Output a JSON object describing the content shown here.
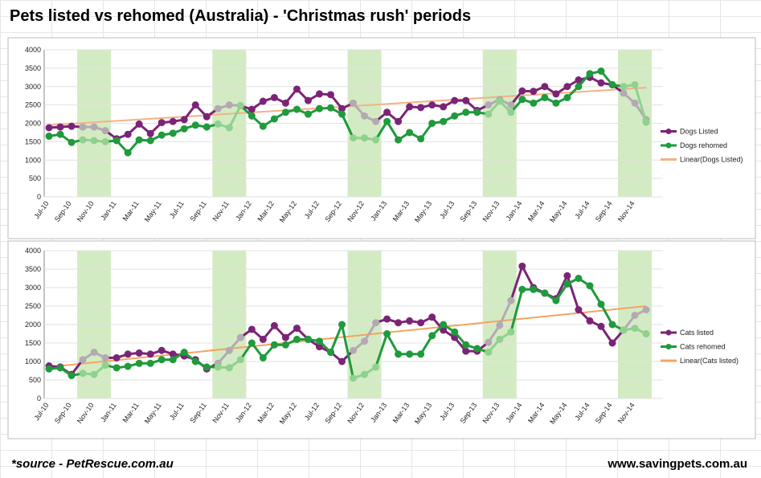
{
  "header": {
    "title": "Pets listed vs rehomed (Australia) - 'Christmas rush' periods"
  },
  "footer": {
    "source": "*source - PetRescue.com.au",
    "site": "www.savingpets.com.au"
  },
  "chart_data": [
    {
      "type": "line",
      "categories": [
        "Jul-10",
        null,
        "Sep-10",
        null,
        "Nov-10",
        null,
        "Jan-11",
        null,
        "Mar-11",
        null,
        "May-11",
        null,
        "Jul-11",
        null,
        "Sep-11",
        null,
        "Nov-11",
        null,
        "Jan-12",
        null,
        "Mar-12",
        null,
        "May-12",
        null,
        "Jul-12",
        null,
        "Sep-12",
        null,
        "Nov-12",
        null,
        "Jan-13",
        null,
        "Mar-13",
        null,
        "May-13",
        null,
        "Jul-13",
        null,
        "Sep-13",
        null,
        "Nov-13",
        null,
        "Jan-14",
        null,
        "Mar-14",
        null,
        "May-14",
        null,
        "Jul-14",
        null,
        "Sep-14",
        null,
        "Nov-14",
        null
      ],
      "series": [
        {
          "name": "Dogs Listed",
          "color": "#7b2477",
          "highlight_color": "#b3a9b3",
          "values": [
            1880,
            1900,
            1920,
            1900,
            1900,
            1800,
            1580,
            1700,
            1980,
            1720,
            2020,
            2050,
            2100,
            2500,
            2180,
            2400,
            2500,
            2480,
            2380,
            2600,
            2700,
            2550,
            2930,
            2620,
            2800,
            2780,
            2400,
            2550,
            2200,
            2050,
            2300,
            2050,
            2450,
            2430,
            2500,
            2450,
            2620,
            2620,
            2350,
            2500,
            2650,
            2500,
            2880,
            2870,
            3000,
            2800,
            3000,
            3180,
            3250,
            3100,
            3050,
            2820,
            2550,
            2100
          ]
        },
        {
          "name": "Dogs rehomed",
          "color": "#1f9a3c",
          "highlight_color": "#8fd18f",
          "values": [
            1650,
            1700,
            1480,
            1550,
            1530,
            1500,
            1530,
            1200,
            1550,
            1530,
            1680,
            1730,
            1850,
            1950,
            1900,
            1980,
            1880,
            2480,
            2200,
            1920,
            2120,
            2300,
            2380,
            2250,
            2400,
            2420,
            2250,
            1600,
            1600,
            1550,
            2050,
            1550,
            1750,
            1580,
            2000,
            2050,
            2200,
            2300,
            2300,
            2250,
            2600,
            2300,
            2650,
            2550,
            2700,
            2550,
            2700,
            3000,
            3350,
            3420,
            3050,
            3000,
            3050,
            2030
          ]
        }
      ],
      "trendline": {
        "name": "Linear(Dogs Listed)",
        "color": "#f4b183",
        "values": [
          1950,
          2970
        ]
      },
      "highlight_periods": [
        "Nov-10",
        "Nov-11",
        "Nov-12",
        "Nov-13",
        "Nov-14"
      ],
      "highlight_color": "#d3ebc3",
      "ylim": [
        0,
        4000
      ],
      "yticks": [
        0,
        500,
        1000,
        1500,
        2000,
        2500,
        3000,
        3500,
        4000
      ],
      "grid": true,
      "legend": "right"
    },
    {
      "type": "line",
      "categories": [
        "Jul-10",
        null,
        "Sep-10",
        null,
        "Nov-10",
        null,
        "Jan-11",
        null,
        "Mar-11",
        null,
        "May-11",
        null,
        "Jul-11",
        null,
        "Sep-11",
        null,
        "Nov-11",
        null,
        "Jan-12",
        null,
        "Mar-12",
        null,
        "May-12",
        null,
        "Jul-12",
        null,
        "Sep-12",
        null,
        "Nov-12",
        null,
        "Jan-13",
        null,
        "Mar-13",
        null,
        "May-13",
        null,
        "Jul-13",
        null,
        "Sep-13",
        null,
        "Nov-13",
        null,
        "Jan-14",
        null,
        "Mar-14",
        null,
        "May-14",
        null,
        "Jul-14",
        null,
        "Sep-14",
        null,
        "Nov-14",
        null
      ],
      "series": [
        {
          "name": "Cats listed",
          "color": "#7b2477",
          "highlight_color": "#b3a9b3",
          "values": [
            880,
            850,
            650,
            1050,
            1250,
            1100,
            1100,
            1200,
            1230,
            1200,
            1300,
            1200,
            1150,
            1050,
            800,
            950,
            1300,
            1650,
            1870,
            1600,
            1970,
            1650,
            1900,
            1600,
            1400,
            1250,
            1000,
            1300,
            1550,
            2050,
            2150,
            2050,
            2100,
            2050,
            2200,
            1850,
            1650,
            1280,
            1280,
            1520,
            1980,
            2650,
            3580,
            3000,
            2850,
            2700,
            3320,
            2400,
            2100,
            1950,
            1500,
            1850,
            2250,
            2400
          ]
        },
        {
          "name": "Cats rehomed",
          "color": "#1f9a3c",
          "highlight_color": "#8fd18f",
          "values": [
            800,
            830,
            620,
            680,
            650,
            900,
            830,
            870,
            950,
            950,
            1050,
            1050,
            1250,
            1000,
            850,
            850,
            830,
            1050,
            1500,
            1100,
            1450,
            1450,
            1600,
            1600,
            1550,
            1250,
            2000,
            550,
            650,
            850,
            1750,
            1200,
            1200,
            1200,
            1700,
            2000,
            1800,
            1450,
            1350,
            1250,
            1600,
            1800,
            2950,
            2950,
            2850,
            2650,
            3100,
            3250,
            3050,
            2550,
            2000,
            1850,
            1900,
            1750
          ]
        }
      ],
      "trendline": {
        "name": "Linear(Cats listed)",
        "color": "#f4a460",
        "values": [
          850,
          2500
        ]
      },
      "highlight_periods": [
        "Nov-10",
        "Nov-11",
        "Nov-12",
        "Nov-13",
        "Nov-14"
      ],
      "highlight_color": "#d3ebc3",
      "ylim": [
        0,
        4000
      ],
      "yticks": [
        0,
        500,
        1000,
        1500,
        2000,
        2500,
        3000,
        3500,
        4000
      ],
      "grid": true,
      "legend": "right"
    }
  ]
}
